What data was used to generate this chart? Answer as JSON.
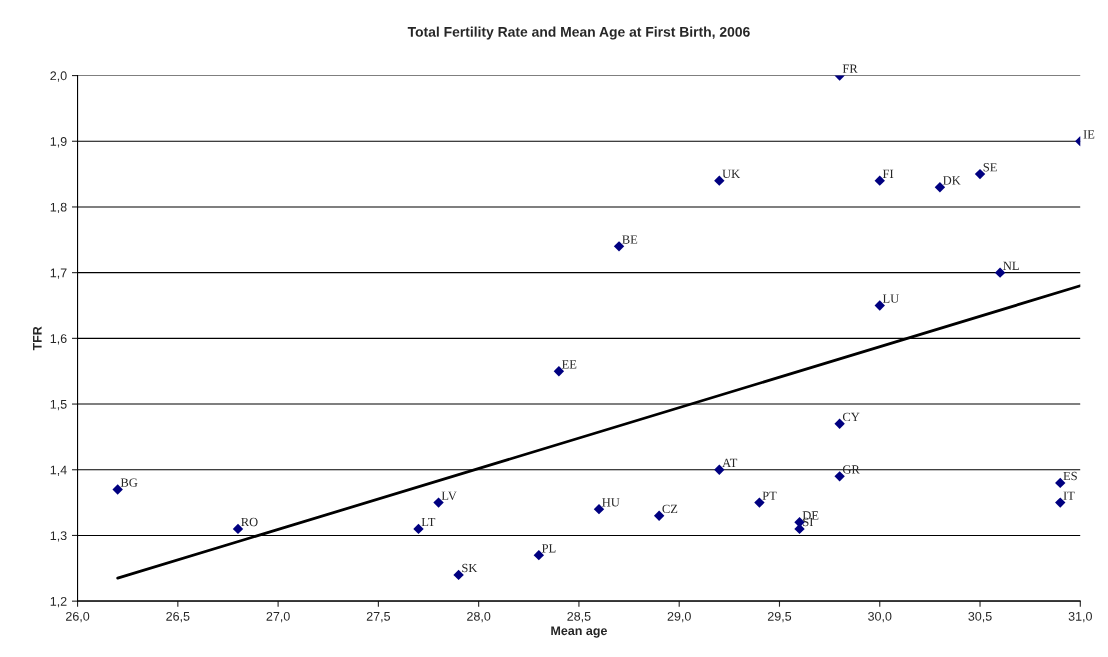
{
  "chart_data": {
    "type": "scatter",
    "title": "Total Fertility Rate and Mean Age at First Birth, 2006",
    "xlabel": "Mean age",
    "ylabel": "TFR",
    "xlim": [
      26.0,
      31.0
    ],
    "ylim": [
      1.2,
      2.0
    ],
    "xticks": [
      {
        "value": 26.0,
        "label": "26,0"
      },
      {
        "value": 26.5,
        "label": "26,5"
      },
      {
        "value": 27.0,
        "label": "27,0"
      },
      {
        "value": 27.5,
        "label": "27,5"
      },
      {
        "value": 28.0,
        "label": "28,0"
      },
      {
        "value": 28.5,
        "label": "28,5"
      },
      {
        "value": 29.0,
        "label": "29,0"
      },
      {
        "value": 29.5,
        "label": "29,5"
      },
      {
        "value": 30.0,
        "label": "30,0"
      },
      {
        "value": 30.5,
        "label": "30,5"
      },
      {
        "value": 31.0,
        "label": "31,0"
      }
    ],
    "yticks": [
      {
        "value": 1.2,
        "label": "1,2"
      },
      {
        "value": 1.3,
        "label": "1,3"
      },
      {
        "value": 1.4,
        "label": "1,4"
      },
      {
        "value": 1.5,
        "label": "1,5"
      },
      {
        "value": 1.6,
        "label": "1,6"
      },
      {
        "value": 1.7,
        "label": "1,7"
      },
      {
        "value": 1.8,
        "label": "1,8"
      },
      {
        "value": 1.9,
        "label": "1,9"
      },
      {
        "value": 2.0,
        "label": "2,0"
      }
    ],
    "grid": "y",
    "legend": false,
    "marker": "diamond",
    "series": [
      {
        "color": "#000080",
        "x": [
          29.8,
          31.0,
          29.2,
          30.0,
          30.3,
          30.5,
          28.7,
          30.6,
          30.0,
          28.4,
          29.8,
          29.2,
          29.8,
          30.9,
          26.2,
          30.9,
          27.8,
          29.4,
          28.6,
          28.9,
          29.6,
          29.6,
          26.8,
          27.7,
          28.3,
          27.9
        ],
        "values": [
          2.0,
          1.9,
          1.84,
          1.84,
          1.83,
          1.85,
          1.74,
          1.7,
          1.65,
          1.55,
          1.47,
          1.4,
          1.39,
          1.38,
          1.37,
          1.35,
          1.35,
          1.35,
          1.34,
          1.33,
          1.32,
          1.31,
          1.31,
          1.31,
          1.27,
          1.24
        ]
      },
      {
        "type": "line",
        "color": "#000000",
        "marker": "none",
        "x": [
          26.2,
          31.0
        ],
        "values": [
          1.235,
          1.68
        ]
      }
    ],
    "annotations": [
      {
        "text": "FR",
        "x": 29.8,
        "y": 2.0
      },
      {
        "text": "IE",
        "x": 31.0,
        "y": 1.9
      },
      {
        "text": "UK",
        "x": 29.2,
        "y": 1.84
      },
      {
        "text": "FI",
        "x": 30.0,
        "y": 1.84
      },
      {
        "text": "DK",
        "x": 30.3,
        "y": 1.83
      },
      {
        "text": "SE",
        "x": 30.5,
        "y": 1.85
      },
      {
        "text": "BE",
        "x": 28.7,
        "y": 1.74
      },
      {
        "text": "NL",
        "x": 30.6,
        "y": 1.7
      },
      {
        "text": "LU",
        "x": 30.0,
        "y": 1.65
      },
      {
        "text": "EE",
        "x": 28.4,
        "y": 1.55
      },
      {
        "text": "CY",
        "x": 29.8,
        "y": 1.47
      },
      {
        "text": "AT",
        "x": 29.2,
        "y": 1.4
      },
      {
        "text": "GR",
        "x": 29.8,
        "y": 1.39
      },
      {
        "text": "ES",
        "x": 30.9,
        "y": 1.38
      },
      {
        "text": "BG",
        "x": 26.2,
        "y": 1.37
      },
      {
        "text": "IT",
        "x": 30.9,
        "y": 1.35
      },
      {
        "text": "LV",
        "x": 27.8,
        "y": 1.35
      },
      {
        "text": "PT",
        "x": 29.4,
        "y": 1.35
      },
      {
        "text": "HU",
        "x": 28.6,
        "y": 1.34
      },
      {
        "text": "CZ",
        "x": 28.9,
        "y": 1.33
      },
      {
        "text": "DE",
        "x": 29.6,
        "y": 1.32
      },
      {
        "text": "SI",
        "x": 29.6,
        "y": 1.31
      },
      {
        "text": "RO",
        "x": 26.8,
        "y": 1.31
      },
      {
        "text": "LT",
        "x": 27.7,
        "y": 1.31
      },
      {
        "text": "PL",
        "x": 28.3,
        "y": 1.27
      },
      {
        "text": "SK",
        "x": 27.9,
        "y": 1.24
      }
    ]
  }
}
